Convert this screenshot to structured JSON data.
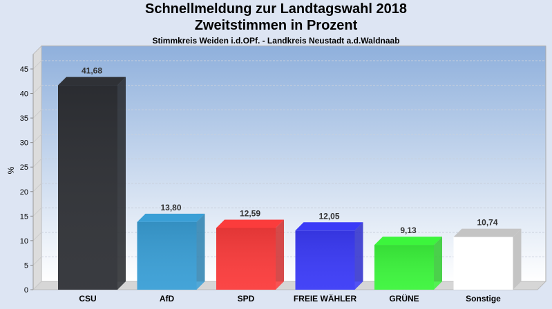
{
  "chart_data": {
    "type": "bar",
    "title": "Schnellmeldung zur Landtagswahl 2018",
    "subtitle": "Zweitstimmen in Prozent",
    "subtitle2": "Stimmkreis Weiden i.d.OPf. - Landkreis Neustadt a.d.Waldnaab",
    "xlabel": "",
    "ylabel": "%",
    "ylim": [
      0,
      45
    ],
    "yticks": [
      0,
      5,
      10,
      15,
      20,
      25,
      30,
      35,
      40,
      45
    ],
    "grid": true,
    "categories": [
      "CSU",
      "AfD",
      "SPD",
      "FREIE WÄHLER",
      "GRÜNE",
      "Sonstige"
    ],
    "values": [
      41.68,
      13.8,
      12.59,
      12.05,
      9.13,
      10.74
    ],
    "value_labels": [
      "41,68",
      "13,80",
      "12,59",
      "12,05",
      "9,13",
      "10,74"
    ],
    "colors": [
      "#2f3136",
      "#3a9fd6",
      "#fb3c3c",
      "#3b3bf7",
      "#3cf53c",
      "#ffffff"
    ]
  }
}
